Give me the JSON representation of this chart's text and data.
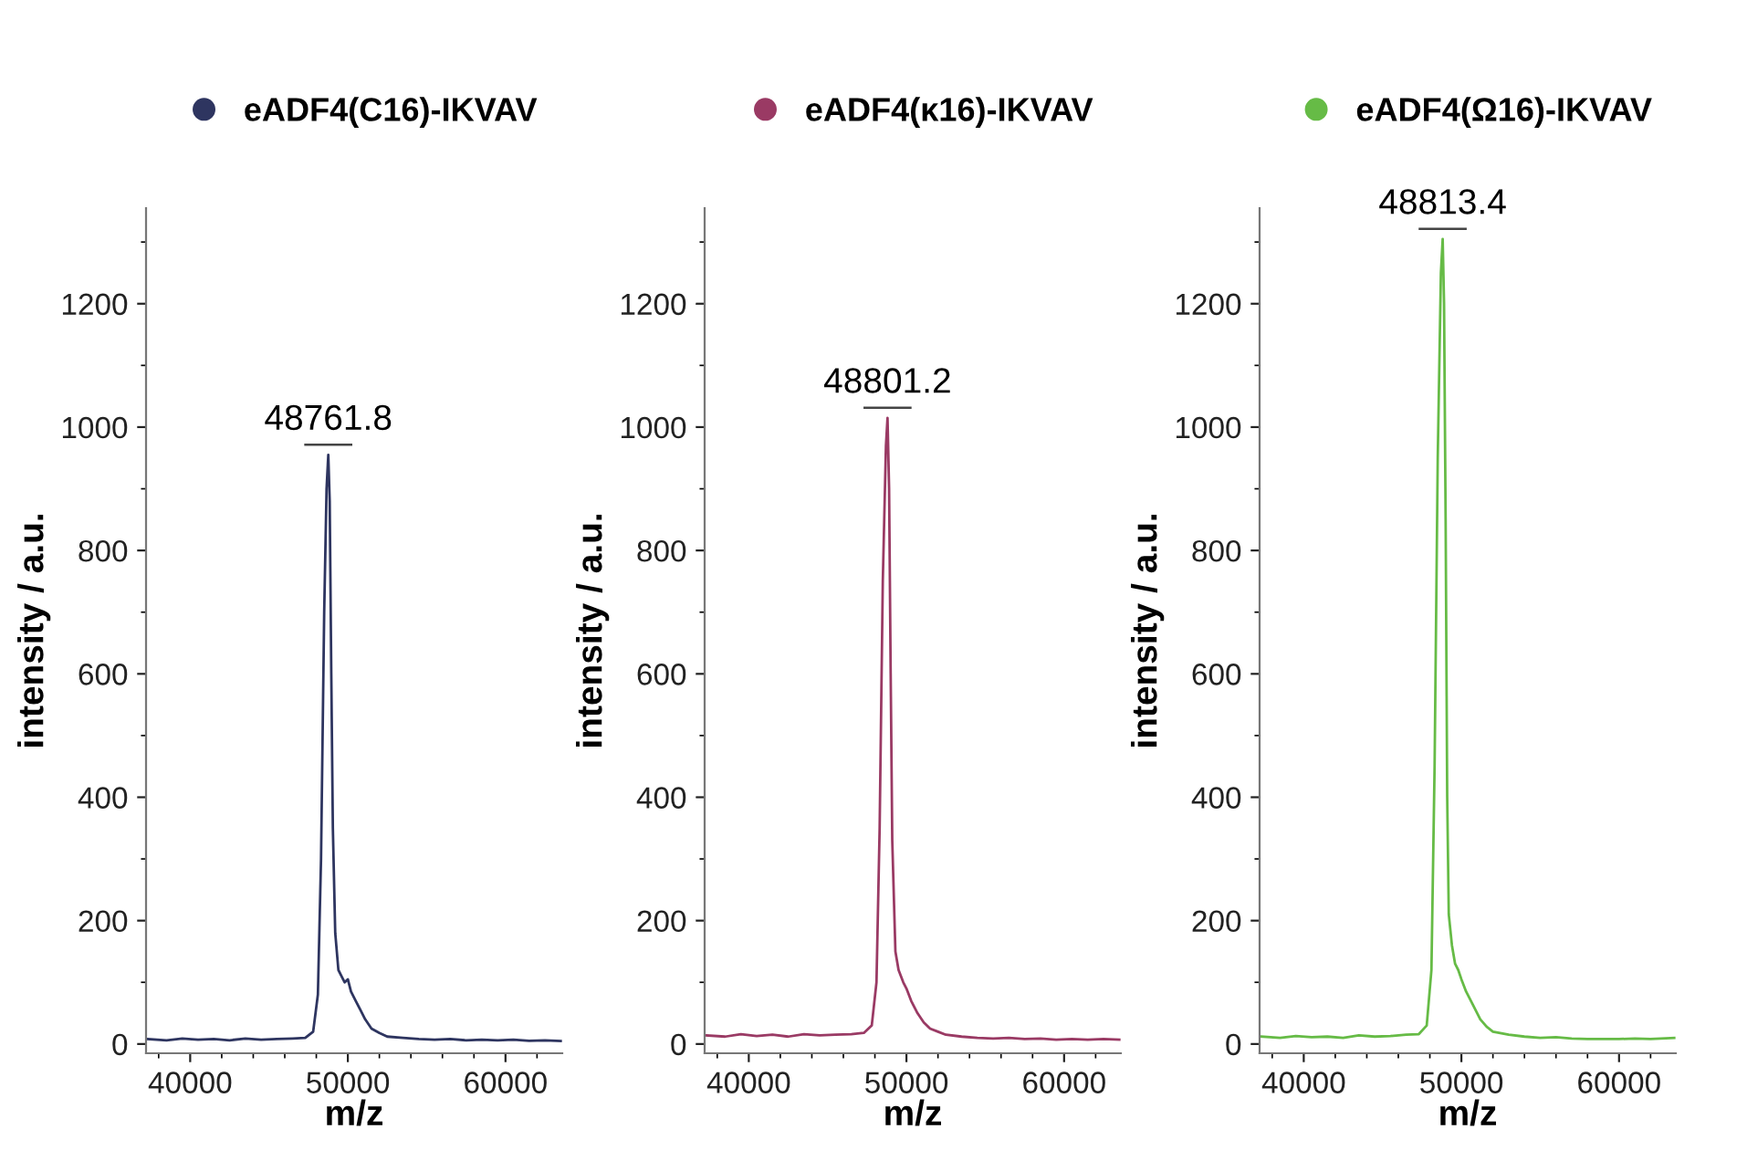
{
  "chart_data": [
    {
      "type": "line",
      "xlabel": "m/z",
      "ylabel": "intensity / a.u.",
      "legend": "top",
      "xlim": [
        37200,
        63600
      ],
      "ylim": [
        -15,
        1355
      ],
      "xticks": [
        {
          "value": 38000,
          "label": null
        },
        40000,
        {
          "value": 42000,
          "label": null
        },
        {
          "value": 44000,
          "label": null
        },
        {
          "value": 46000,
          "label": null
        },
        {
          "value": 48000,
          "label": null
        },
        50000,
        {
          "value": 52000,
          "label": null
        },
        {
          "value": 54000,
          "label": null
        },
        {
          "value": 56000,
          "label": null
        },
        {
          "value": 58000,
          "label": null
        },
        60000,
        {
          "value": 62000,
          "label": null
        }
      ],
      "yticks": [
        0,
        {
          "value": 100,
          "label": null
        },
        200,
        {
          "value": 300,
          "label": null
        },
        400,
        {
          "value": 500,
          "label": null
        },
        600,
        {
          "value": 700,
          "label": null
        },
        800,
        {
          "value": 900,
          "label": null
        },
        1000,
        {
          "value": 1100,
          "label": null
        },
        1200,
        {
          "value": 1300,
          "label": null
        }
      ],
      "series": [
        {
          "name": "eADF4(C16)-IKVAV",
          "color": "#2e3560",
          "x": [
            37300,
            38500,
            39500,
            40500,
            41500,
            42500,
            43500,
            44500,
            45500,
            46500,
            47300,
            47800,
            48100,
            48300,
            48500,
            48650,
            48760,
            48850,
            48950,
            49050,
            49200,
            49400,
            49600,
            49800,
            50000,
            50200,
            50500,
            50800,
            51100,
            51500,
            52000,
            52500,
            53500,
            54500,
            55500,
            56500,
            57500,
            58500,
            59500,
            60500,
            61500,
            62500,
            63500
          ],
          "values": [
            8,
            6,
            9,
            7,
            8,
            6,
            9,
            7,
            8,
            9,
            10,
            20,
            80,
            300,
            700,
            900,
            955,
            880,
            600,
            350,
            180,
            120,
            110,
            100,
            105,
            85,
            70,
            55,
            40,
            25,
            18,
            12,
            10,
            8,
            7,
            8,
            6,
            7,
            6,
            7,
            5,
            6,
            5
          ]
        }
      ],
      "annotations": [
        {
          "text": "48761.8",
          "x": 48760,
          "y": 955
        }
      ]
    },
    {
      "type": "line",
      "xlabel": "m/z",
      "ylabel": "intensity / a.u.",
      "legend": "top",
      "xlim": [
        37200,
        63600
      ],
      "ylim": [
        -15,
        1355
      ],
      "xticks": [
        {
          "value": 38000,
          "label": null
        },
        40000,
        {
          "value": 42000,
          "label": null
        },
        {
          "value": 44000,
          "label": null
        },
        {
          "value": 46000,
          "label": null
        },
        {
          "value": 48000,
          "label": null
        },
        50000,
        {
          "value": 52000,
          "label": null
        },
        {
          "value": 54000,
          "label": null
        },
        {
          "value": 56000,
          "label": null
        },
        {
          "value": 58000,
          "label": null
        },
        60000,
        {
          "value": 62000,
          "label": null
        }
      ],
      "yticks": [
        0,
        {
          "value": 100,
          "label": null
        },
        200,
        {
          "value": 300,
          "label": null
        },
        400,
        {
          "value": 500,
          "label": null
        },
        600,
        {
          "value": 700,
          "label": null
        },
        800,
        {
          "value": 900,
          "label": null
        },
        1000,
        {
          "value": 1100,
          "label": null
        },
        1200,
        {
          "value": 1300,
          "label": null
        }
      ],
      "series": [
        {
          "name": "eADF4(κ16)-IKVAV",
          "color": "#9a3a64",
          "x": [
            37300,
            38500,
            39500,
            40500,
            41500,
            42500,
            43500,
            44500,
            45500,
            46500,
            47300,
            47800,
            48100,
            48300,
            48500,
            48700,
            48800,
            48900,
            49000,
            49100,
            49300,
            49500,
            49800,
            50000,
            50300,
            50700,
            51100,
            51500,
            52000,
            52500,
            53500,
            54500,
            55500,
            56500,
            57500,
            58500,
            59500,
            60500,
            61500,
            62500,
            63500
          ],
          "values": [
            14,
            12,
            16,
            13,
            15,
            12,
            16,
            14,
            15,
            16,
            18,
            30,
            100,
            350,
            750,
            970,
            1015,
            900,
            600,
            330,
            150,
            120,
            100,
            90,
            70,
            50,
            35,
            25,
            20,
            15,
            12,
            10,
            9,
            10,
            8,
            9,
            7,
            8,
            7,
            8,
            7
          ]
        }
      ],
      "annotations": [
        {
          "text": "48801.2",
          "x": 48800,
          "y": 1015
        }
      ]
    },
    {
      "type": "line",
      "xlabel": "m/z",
      "ylabel": "intensity / a.u.",
      "legend": "top",
      "xlim": [
        37200,
        63600
      ],
      "ylim": [
        -15,
        1355
      ],
      "xticks": [
        {
          "value": 38000,
          "label": null
        },
        40000,
        {
          "value": 42000,
          "label": null
        },
        {
          "value": 44000,
          "label": null
        },
        {
          "value": 46000,
          "label": null
        },
        {
          "value": 48000,
          "label": null
        },
        50000,
        {
          "value": 52000,
          "label": null
        },
        {
          "value": 54000,
          "label": null
        },
        {
          "value": 56000,
          "label": null
        },
        {
          "value": 58000,
          "label": null
        },
        60000,
        {
          "value": 62000,
          "label": null
        }
      ],
      "yticks": [
        0,
        {
          "value": 100,
          "label": null
        },
        200,
        {
          "value": 300,
          "label": null
        },
        400,
        {
          "value": 500,
          "label": null
        },
        600,
        {
          "value": 700,
          "label": null
        },
        800,
        {
          "value": 900,
          "label": null
        },
        1000,
        {
          "value": 1100,
          "label": null
        },
        1200,
        {
          "value": 1300,
          "label": null
        }
      ],
      "series": [
        {
          "name": "eADF4(Ω16)-IKVAV",
          "color": "#66bb46",
          "x": [
            37300,
            38500,
            39500,
            40500,
            41500,
            42500,
            43500,
            44500,
            45500,
            46500,
            47300,
            47800,
            48100,
            48300,
            48500,
            48700,
            48813,
            48900,
            49000,
            49100,
            49200,
            49400,
            49600,
            49800,
            50000,
            50300,
            50700,
            51200,
            51600,
            52000,
            53000,
            54000,
            55000,
            56000,
            57000,
            58000,
            59000,
            60000,
            61000,
            62000,
            63500
          ],
          "values": [
            12,
            10,
            13,
            11,
            12,
            10,
            14,
            12,
            13,
            15,
            16,
            30,
            120,
            450,
            950,
            1250,
            1305,
            1200,
            850,
            400,
            210,
            160,
            130,
            120,
            105,
            85,
            65,
            40,
            28,
            20,
            15,
            12,
            10,
            11,
            9,
            8,
            8,
            8,
            9,
            8,
            10
          ]
        }
      ],
      "annotations": [
        {
          "text": "48813.4",
          "x": 48813,
          "y": 1305
        }
      ]
    }
  ]
}
